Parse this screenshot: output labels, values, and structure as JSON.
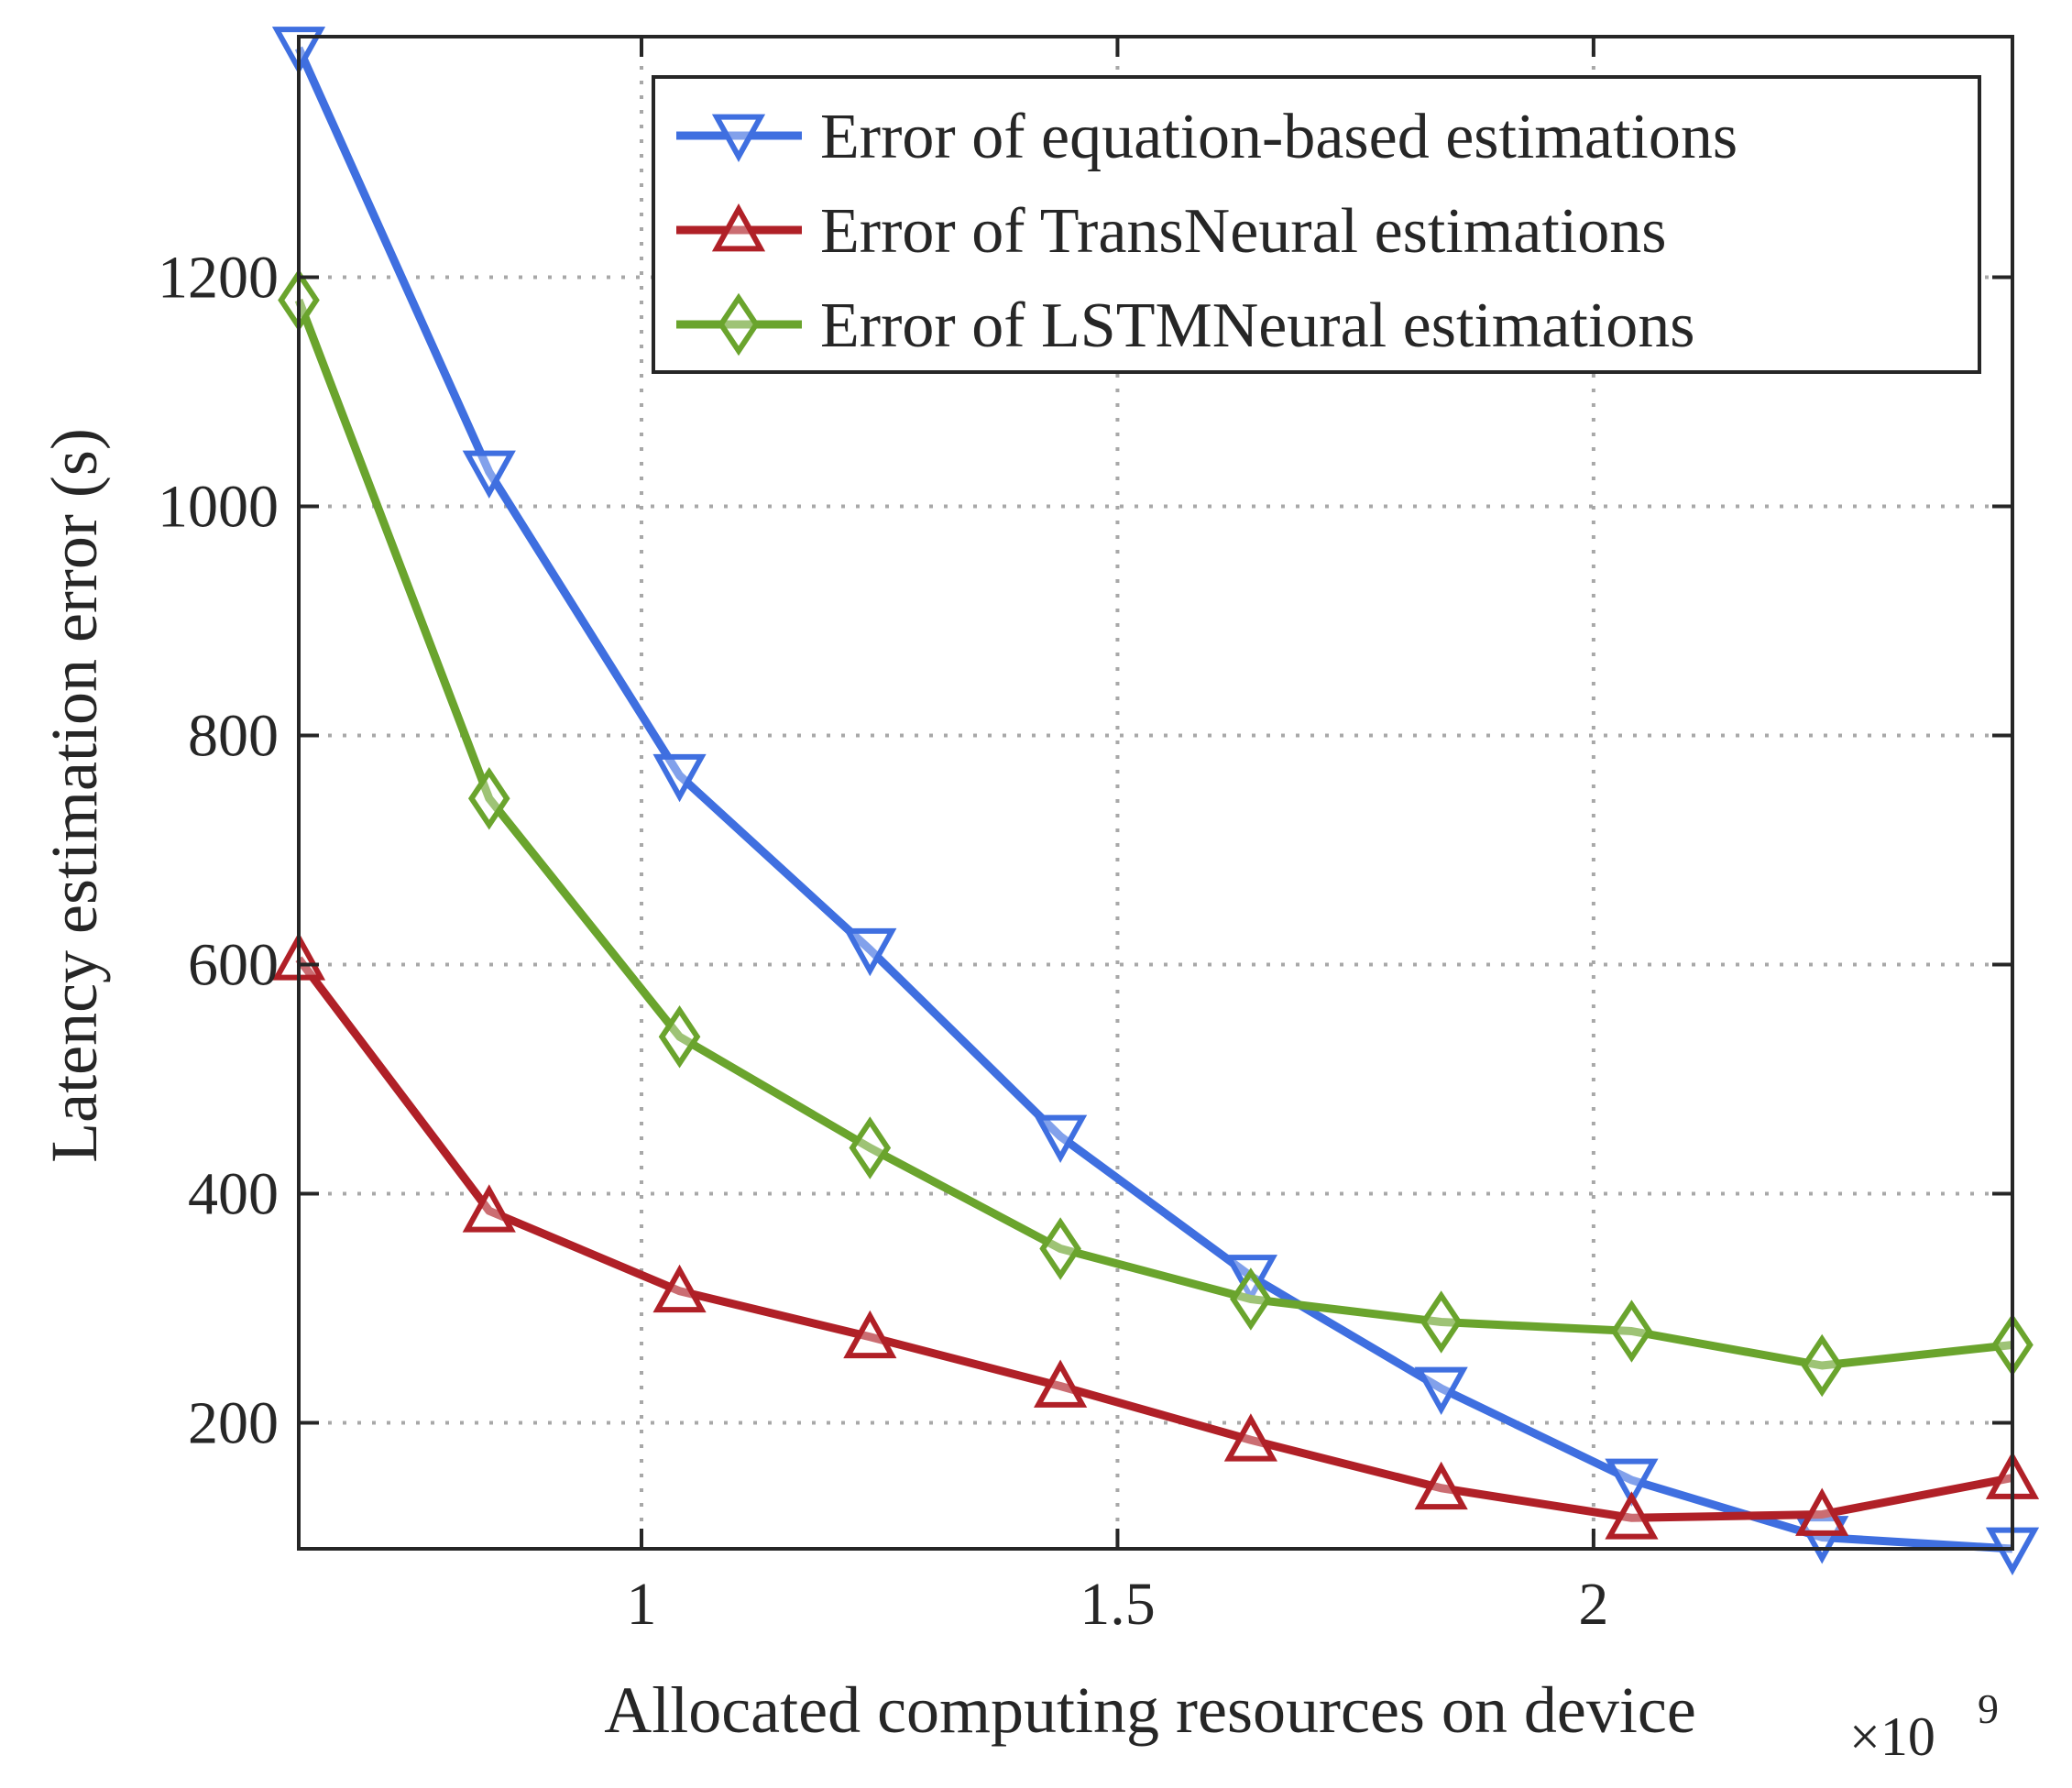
{
  "chart_data": {
    "type": "line",
    "xlabel": "Allocated computing resources on device",
    "x_exponent": {
      "base": "×10",
      "power": "9"
    },
    "ylabel": "Latency estimation error (s)",
    "xlim": [
      0.64,
      2.44
    ],
    "ylim": [
      90,
      1410
    ],
    "xticks": [
      {
        "value": 1,
        "label": "1"
      },
      {
        "value": 1.5,
        "label": "1.5"
      },
      {
        "value": 2,
        "label": "2"
      }
    ],
    "yticks": [
      {
        "value": 200,
        "label": "200"
      },
      {
        "value": 400,
        "label": "400"
      },
      {
        "value": 600,
        "label": "600"
      },
      {
        "value": 800,
        "label": "800"
      },
      {
        "value": 1000,
        "label": "1000"
      },
      {
        "value": 1200,
        "label": "1200"
      }
    ],
    "grid": true,
    "legend_position": "top-right",
    "x": [
      0.64,
      0.84,
      1.04,
      1.24,
      1.44,
      1.64,
      1.84,
      2.04,
      2.24,
      2.44
    ],
    "series": [
      {
        "name": "Error of equation-based estimations",
        "color": "#3f6fe0",
        "marker": "triangle-down",
        "values": [
          1400,
          1030,
          765,
          613,
          450,
          328,
          230,
          150,
          100,
          90
        ]
      },
      {
        "name": "Error of TransNeural estimations",
        "color": "#b02027",
        "marker": "triangle-up",
        "values": [
          605,
          385,
          315,
          275,
          232,
          185,
          143,
          117,
          120,
          152
        ]
      },
      {
        "name": "Error of LSTMNeural estimations",
        "color": "#6aa42d",
        "marker": "diamond",
        "values": [
          1180,
          745,
          537,
          440,
          352,
          308,
          288,
          280,
          250,
          268
        ]
      }
    ]
  }
}
